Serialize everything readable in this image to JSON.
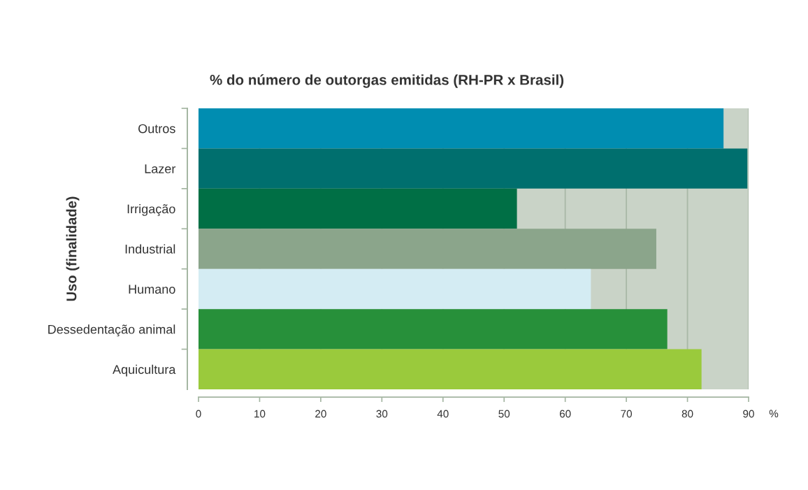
{
  "chart_data": {
    "type": "bar",
    "orientation": "horizontal",
    "title": "% do número de outorgas emitidas (RH-PR x Brasil)",
    "ylabel": "Uso (finalidade)",
    "xlabel": "%",
    "categories": [
      "Outros",
      "Lazer",
      "Irrigação",
      "Industrial",
      "Humano",
      "Dessedentação animal",
      "Aquicultura"
    ],
    "values": [
      85.9,
      89.8,
      52.1,
      74.9,
      64.2,
      76.7,
      82.3
    ],
    "colors": [
      "#008db1",
      "#006f6e",
      "#006f45",
      "#8ba58b",
      "#d4ecf3",
      "#27903a",
      "#9aca3c"
    ],
    "xlim": [
      0,
      90
    ],
    "xticks": [
      0,
      10,
      20,
      30,
      40,
      50,
      60,
      70,
      80,
      90
    ],
    "grid": "x"
  }
}
